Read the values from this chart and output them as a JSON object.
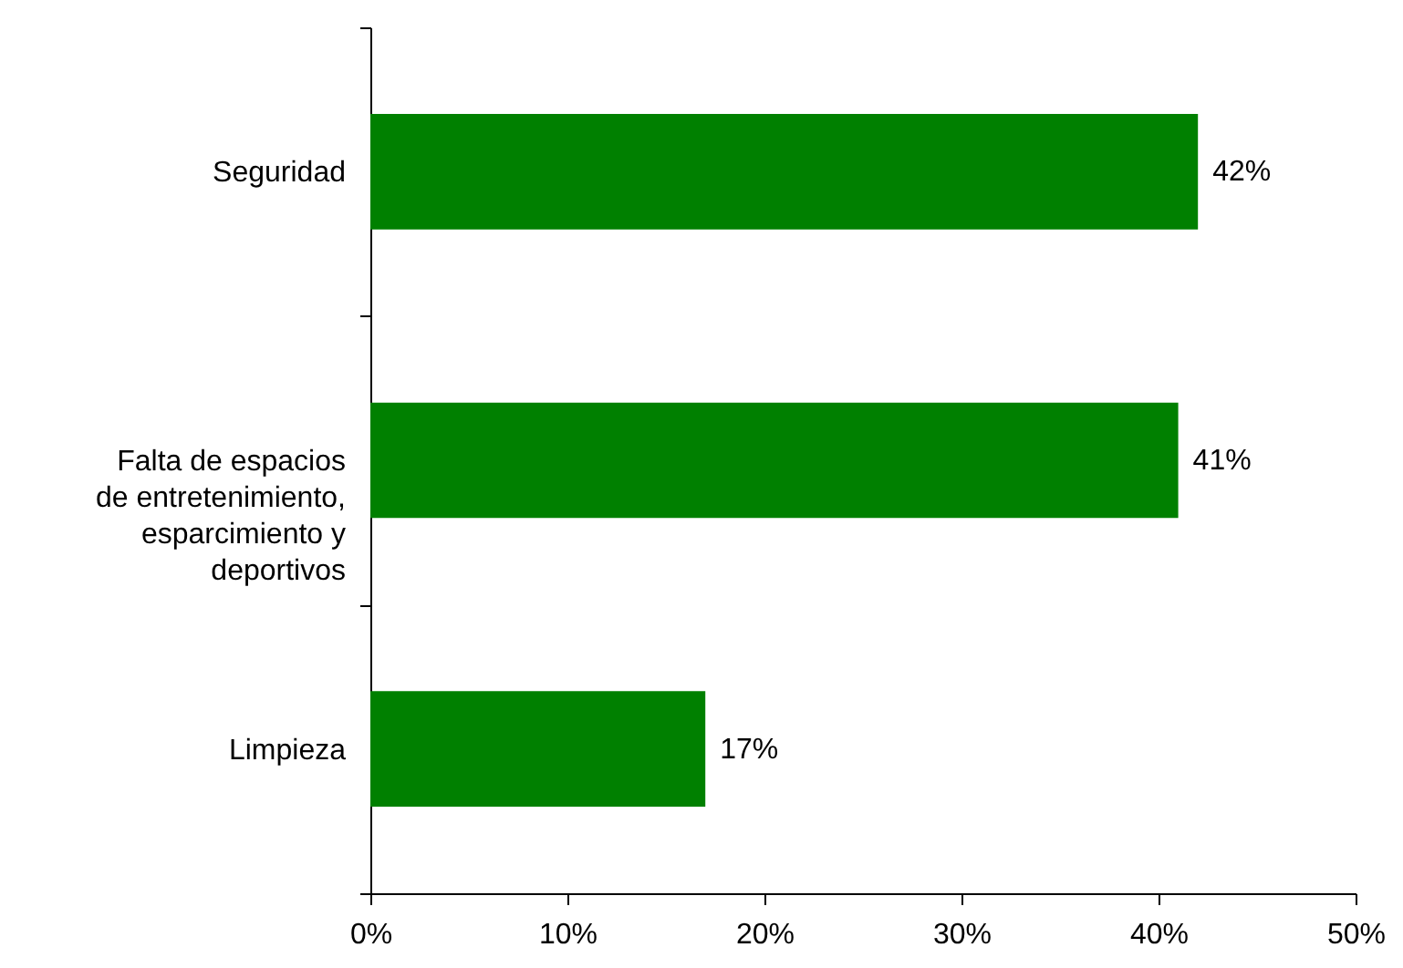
{
  "chart_data": {
    "type": "bar",
    "orientation": "horizontal",
    "categories": [
      "Seguridad",
      "Falta de espacios de entretenimiento, esparcimiento y deportivos",
      "Limpieza"
    ],
    "values": [
      42,
      41,
      17
    ],
    "value_labels": [
      "42%",
      "41%",
      "17%"
    ],
    "color": "#008000",
    "xlim": [
      0,
      50
    ],
    "xticks": [
      {
        "value": 0,
        "label": "0%"
      },
      {
        "value": 10,
        "label": "10%"
      },
      {
        "value": 20,
        "label": "20%"
      },
      {
        "value": 30,
        "label": "30%"
      },
      {
        "value": 40,
        "label": "40%"
      },
      {
        "value": 50,
        "label": "50%"
      }
    ],
    "grid": false
  }
}
